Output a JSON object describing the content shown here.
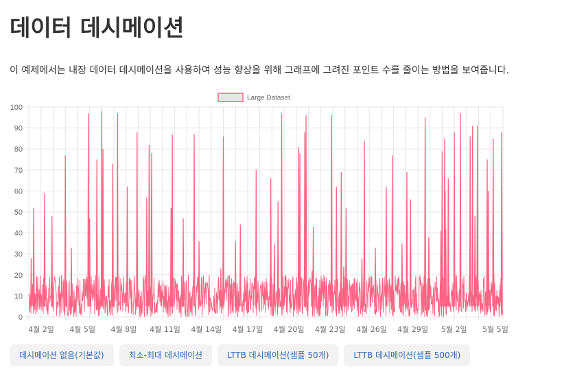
{
  "page": {
    "title": "데이터 데시메이션",
    "description": "이 예제에서는 내장 데이터 데시메이션을 사용하여 성능 향상을 위해 그래프에 그려진 포인트 수를 줄이는 방법을 보여줍니다."
  },
  "buttons": [
    {
      "label": "데시메이션 없음(기본값)"
    },
    {
      "label": "최소-최대 데시메이션"
    },
    {
      "label": "LTTB 데시메이션(샘플 50개)"
    },
    {
      "label": "LTTB 데시메이션(샘플 500개)"
    }
  ],
  "colors": {
    "line": "#ff6384",
    "legend_fill": "#e6e6e6",
    "legend_border": "#ff6384",
    "grid": "#e5e5e5",
    "button_text": "#3466ad",
    "button_bg": "#f2f2f2"
  },
  "chart_data": {
    "type": "line",
    "legend": "top-center",
    "grid": true,
    "series": [
      {
        "name": "Large Dataset",
        "baseline_range": [
          0,
          20
        ],
        "spikes": [
          {
            "x": 0.2,
            "y": 28
          },
          {
            "x": 0.4,
            "y": 52
          },
          {
            "x": 1.3,
            "y": 59
          },
          {
            "x": 1.9,
            "y": 48
          },
          {
            "x": 3.0,
            "y": 77
          },
          {
            "x": 3.5,
            "y": 33
          },
          {
            "x": 4.9,
            "y": 97
          },
          {
            "x": 5.0,
            "y": 47
          },
          {
            "x": 5.6,
            "y": 75
          },
          {
            "x": 6.0,
            "y": 98
          },
          {
            "x": 6.1,
            "y": 80
          },
          {
            "x": 6.9,
            "y": 73
          },
          {
            "x": 7.3,
            "y": 97
          },
          {
            "x": 8.1,
            "y": 62
          },
          {
            "x": 8.9,
            "y": 88
          },
          {
            "x": 9.7,
            "y": 57
          },
          {
            "x": 9.9,
            "y": 82
          },
          {
            "x": 10.1,
            "y": 78
          },
          {
            "x": 11.7,
            "y": 52
          },
          {
            "x": 11.8,
            "y": 87
          },
          {
            "x": 12.7,
            "y": 47
          },
          {
            "x": 13.6,
            "y": 87
          },
          {
            "x": 14.0,
            "y": 36
          },
          {
            "x": 15.8,
            "y": 23
          },
          {
            "x": 16.0,
            "y": 86
          },
          {
            "x": 17.0,
            "y": 36
          },
          {
            "x": 17.4,
            "y": 44
          },
          {
            "x": 18.7,
            "y": 70
          },
          {
            "x": 19.9,
            "y": 66
          },
          {
            "x": 20.2,
            "y": 35
          },
          {
            "x": 20.5,
            "y": 55
          },
          {
            "x": 20.8,
            "y": 97
          },
          {
            "x": 22.2,
            "y": 81
          },
          {
            "x": 22.3,
            "y": 78
          },
          {
            "x": 22.7,
            "y": 88
          },
          {
            "x": 22.8,
            "y": 96
          },
          {
            "x": 23.4,
            "y": 43
          },
          {
            "x": 23.3,
            "y": 22
          },
          {
            "x": 24.9,
            "y": 96
          },
          {
            "x": 25.3,
            "y": 62
          },
          {
            "x": 25.7,
            "y": 69
          },
          {
            "x": 25.9,
            "y": 24
          },
          {
            "x": 26.1,
            "y": 52
          },
          {
            "x": 27.4,
            "y": 28
          },
          {
            "x": 27.6,
            "y": 84
          },
          {
            "x": 28.5,
            "y": 33
          },
          {
            "x": 29.4,
            "y": 62
          },
          {
            "x": 29.9,
            "y": 77
          },
          {
            "x": 30.7,
            "y": 35
          },
          {
            "x": 31.1,
            "y": 69
          },
          {
            "x": 31.4,
            "y": 56
          },
          {
            "x": 32.6,
            "y": 95
          },
          {
            "x": 32.9,
            "y": 38
          },
          {
            "x": 34.0,
            "y": 79
          },
          {
            "x": 33.9,
            "y": 41
          },
          {
            "x": 34.2,
            "y": 85
          },
          {
            "x": 34.25,
            "y": 60
          },
          {
            "x": 34.3,
            "y": 42
          },
          {
            "x": 34.5,
            "y": 66
          },
          {
            "x": 35.0,
            "y": 88
          },
          {
            "x": 35.5,
            "y": 97
          },
          {
            "x": 36.3,
            "y": 86
          },
          {
            "x": 36.5,
            "y": 91
          },
          {
            "x": 36.7,
            "y": 48
          },
          {
            "x": 36.9,
            "y": 91
          },
          {
            "x": 37.7,
            "y": 75
          },
          {
            "x": 37.8,
            "y": 60
          },
          {
            "x": 38.2,
            "y": 85
          },
          {
            "x": 38.9,
            "y": 88
          }
        ]
      }
    ],
    "x_ticks": [
      "4월 2일",
      "4월 5일",
      "4월 8일",
      "4월 11일",
      "4월 14일",
      "4월 17일",
      "4월 20일",
      "4월 23일",
      "4월 26일",
      "4월 29일",
      "5월 2일",
      "5월 5일"
    ],
    "y_ticks": [
      0,
      10,
      20,
      30,
      40,
      50,
      60,
      70,
      80,
      90,
      100
    ],
    "ylim": [
      0,
      100
    ]
  }
}
